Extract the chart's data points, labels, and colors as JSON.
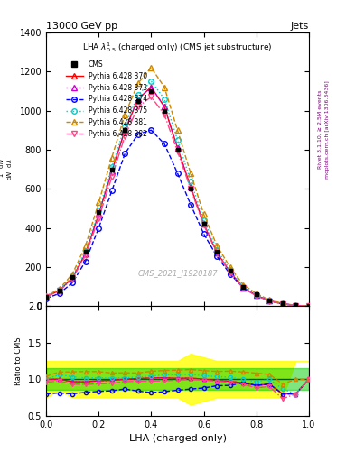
{
  "title": "13000 GeV pp",
  "title_right": "Jets",
  "obs_title": "LHA $\\lambda^1_{0.5}$ (charged only) (CMS jet substructure)",
  "xlabel": "LHA (charged-only)",
  "ylabel": "$\\frac{1}{\\mathrm{d}N}$ $\\frac{\\mathrm{d}N}{\\mathrm{d}\\lambda}$",
  "ylabel_ratio": "Ratio to CMS",
  "watermark": "CMS_2021_I1920187",
  "right_label": "mcplots.cern.ch [arXiv:1306.3436]",
  "rivet_label": "Rivet 3.1.10, ≥ 2.5M events",
  "x": [
    0.0,
    0.05,
    0.1,
    0.15,
    0.2,
    0.25,
    0.3,
    0.35,
    0.4,
    0.45,
    0.5,
    0.55,
    0.6,
    0.65,
    0.7,
    0.75,
    0.8,
    0.85,
    0.9,
    0.95,
    1.0
  ],
  "cms_y": [
    50,
    80,
    150,
    280,
    480,
    700,
    900,
    1050,
    1100,
    1000,
    800,
    600,
    420,
    280,
    180,
    100,
    60,
    30,
    15,
    5,
    0
  ],
  "p370_y": [
    50,
    80,
    145,
    270,
    470,
    690,
    900,
    1060,
    1120,
    1020,
    810,
    610,
    420,
    275,
    175,
    95,
    55,
    28,
    12,
    4,
    0
  ],
  "p373_y": [
    50,
    80,
    145,
    270,
    470,
    690,
    900,
    1060,
    1120,
    1020,
    810,
    610,
    420,
    275,
    175,
    95,
    55,
    28,
    12,
    4,
    0
  ],
  "p374_y": [
    40,
    65,
    120,
    230,
    400,
    590,
    780,
    880,
    900,
    830,
    680,
    520,
    370,
    255,
    165,
    95,
    55,
    28,
    12,
    4,
    0
  ],
  "p375_y": [
    50,
    85,
    155,
    285,
    490,
    710,
    920,
    1080,
    1150,
    1060,
    850,
    640,
    440,
    290,
    185,
    100,
    58,
    30,
    13,
    4,
    0
  ],
  "p381_y": [
    52,
    88,
    165,
    310,
    530,
    760,
    980,
    1140,
    1220,
    1120,
    900,
    680,
    470,
    310,
    200,
    110,
    65,
    32,
    14,
    5,
    0
  ],
  "p382_y": [
    48,
    78,
    140,
    260,
    450,
    660,
    870,
    1020,
    1070,
    980,
    790,
    600,
    415,
    272,
    172,
    93,
    53,
    27,
    11,
    4,
    0
  ],
  "ylim": [
    0,
    1400
  ],
  "yticks": [
    0,
    200,
    400,
    600,
    800,
    1000,
    1200,
    1400
  ],
  "ratio_ylim": [
    0.5,
    2.0
  ],
  "ratio_yticks": [
    0.5,
    1.0,
    1.5,
    2.0
  ],
  "colors": {
    "cms": "#000000",
    "p370": "#ff0000",
    "p373": "#cc00cc",
    "p374": "#0000ff",
    "p375": "#00cccc",
    "p381": "#cc8800",
    "p382": "#ff4488"
  },
  "linestyles": {
    "p370": "-",
    "p373": ":",
    "p374": "--",
    "p375": ":",
    "p381": "--",
    "p382": "-."
  },
  "markers": {
    "cms": "s",
    "p370": "^",
    "p373": "^",
    "p374": "o",
    "p375": "o",
    "p381": "^",
    "p382": "v"
  },
  "ratio_green_band": [
    0.85,
    1.15
  ],
  "ratio_yellow_band_y": [
    0.75,
    0.85,
    0.75,
    0.75,
    0.75,
    0.75,
    0.75,
    0.75,
    0.75,
    0.75,
    0.75,
    0.65,
    0.7,
    0.75,
    0.75,
    0.75,
    0.75,
    0.75,
    0.75,
    1.25,
    1.25
  ],
  "ratio_yellow_band_yup": [
    1.25,
    1.25,
    1.25,
    1.25,
    1.25,
    1.25,
    1.25,
    1.25,
    1.25,
    1.25,
    1.25,
    1.35,
    1.3,
    1.25,
    1.25,
    1.25,
    1.25,
    1.25,
    1.25,
    1.25,
    1.25
  ]
}
